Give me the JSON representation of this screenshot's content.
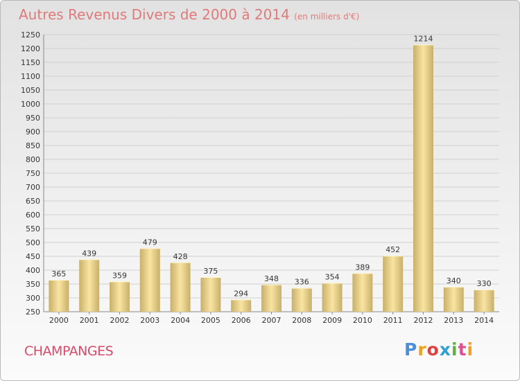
{
  "header": {
    "title": "Autres Revenus Divers de 2000 à 2014",
    "subtitle": "(en milliers d'€)"
  },
  "footer": {
    "commune": "CHAMPANGES"
  },
  "logo": {
    "letters": [
      "P",
      "r",
      "o",
      "x",
      "i",
      "t",
      "i"
    ],
    "colors": [
      "#4a8fd8",
      "#f0a020",
      "#e04040",
      "#30a0d0",
      "#60b040",
      "#e05090",
      "#f0a020"
    ]
  },
  "colors": {
    "bar_light": "#f9e4a2",
    "bar_dark": "#c8b06a",
    "grid": "#d0d0d0",
    "text": "#333333"
  },
  "chart_data": {
    "type": "bar",
    "title": "Autres Revenus Divers de 2000 à 2014",
    "xlabel": "",
    "ylabel": "",
    "ylim": [
      250,
      1250
    ],
    "ytick_step": 50,
    "grid": true,
    "categories": [
      "2000",
      "2001",
      "2002",
      "2003",
      "2004",
      "2005",
      "2006",
      "2007",
      "2008",
      "2009",
      "2010",
      "2011",
      "2012",
      "2013",
      "2014"
    ],
    "values": [
      365,
      439,
      359,
      479,
      428,
      375,
      294,
      348,
      336,
      354,
      389,
      452,
      1214,
      340,
      330
    ]
  }
}
